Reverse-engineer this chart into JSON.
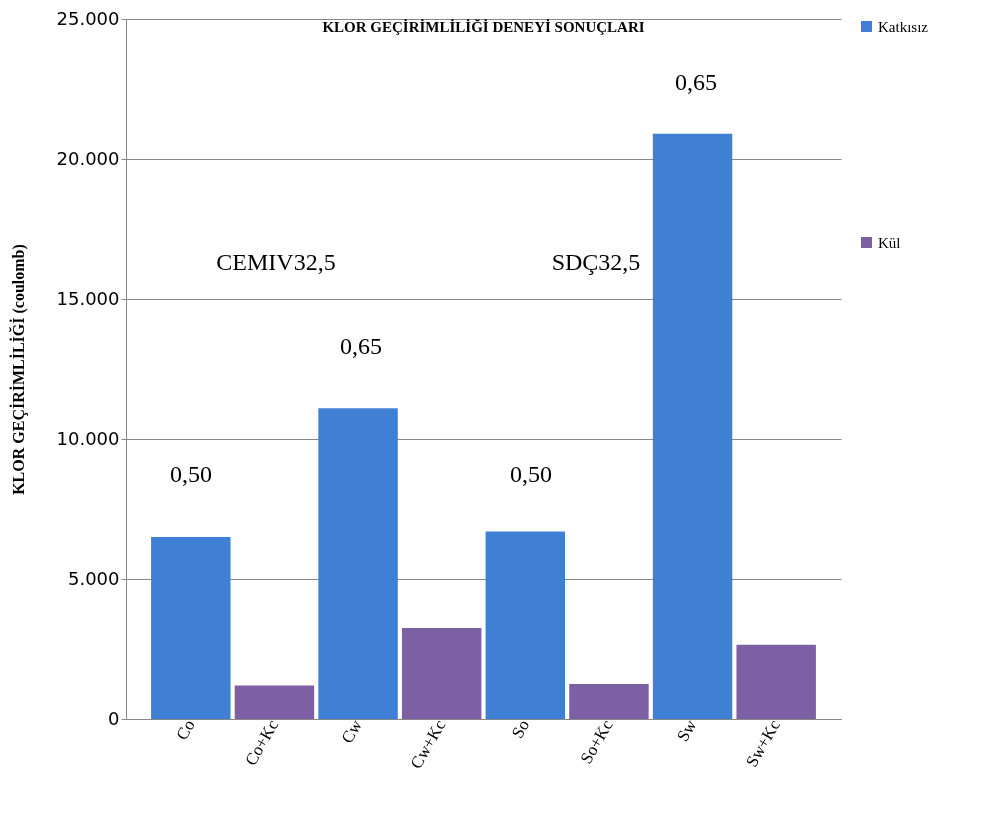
{
  "chart_data": {
    "type": "bar",
    "title": "KLOR GEÇİRİMLİLİĞİ DENEYİ SONUÇLARI",
    "ylabel": "KLOR GEÇİRİMLİLİĞİ (coulomb)",
    "categories": [
      "Co",
      "Co+Kc",
      "Cw",
      "Cw+Kc",
      "So",
      "So+Kc",
      "Sw",
      "Sw+Kc"
    ],
    "series": [
      {
        "name": "Katkısız",
        "color": "#3f7fd4",
        "values": [
          6500,
          null,
          11100,
          null,
          6700,
          null,
          20900,
          null
        ]
      },
      {
        "name": "Kül",
        "color": "#7d5fa3",
        "values": [
          null,
          1200,
          null,
          3250,
          null,
          1250,
          null,
          2650
        ]
      }
    ],
    "ylim": [
      0,
      25000
    ],
    "yticks": [
      0,
      {
        "value": 5000,
        "label": "5.000"
      },
      {
        "value": 10000,
        "label": "10.000"
      },
      {
        "value": 15000,
        "label": "15.000"
      },
      {
        "value": 20000,
        "label": "20.000"
      },
      {
        "value": 25000,
        "label": "25.000"
      }
    ],
    "grid": "y",
    "legend": "right",
    "annotations": [
      "CEMIV32,5",
      "SDÇ32,5",
      "0,50",
      "0,65",
      "0,50",
      "0,65"
    ]
  }
}
